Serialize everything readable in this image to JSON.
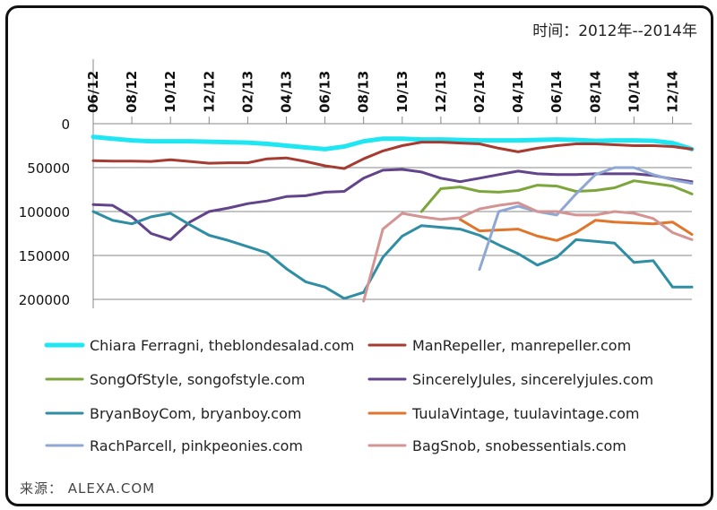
{
  "header": {
    "title": "时间：2012年--2014年"
  },
  "footer": {
    "source": "来源：  ALEXA.COM"
  },
  "chart_data": {
    "type": "line",
    "title": "时间：2012年--2014年",
    "xlabel": "",
    "ylabel": "",
    "x_tick_labels": [
      "06/12",
      "08/12",
      "10/12",
      "12/12",
      "02/13",
      "04/13",
      "06/13",
      "08/13",
      "10/13",
      "12/13",
      "02/14",
      "04/14",
      "06/14",
      "08/14",
      "10/14",
      "12/14"
    ],
    "y_ticks": [
      0,
      50000,
      100000,
      150000,
      200000
    ],
    "y_tick_labels": [
      "0",
      "50000",
      "100000",
      "150000",
      "200000"
    ],
    "ylim": [
      0,
      200000
    ],
    "y_inverted": true,
    "grid": "horizontal",
    "legend_position": "bottom",
    "x_range": [
      0,
      31
    ],
    "series": [
      {
        "name": "Chiara Ferragni, theblondesalad.com",
        "color": "#1ee6f2",
        "x": [
          0,
          1,
          2,
          3,
          4,
          5,
          6,
          7,
          8,
          9,
          10,
          11,
          12,
          13,
          14,
          15,
          16,
          17,
          18,
          19,
          20,
          21,
          22,
          23,
          24,
          25,
          26,
          27,
          28,
          29,
          30,
          31
        ],
        "values": [
          15000,
          17000,
          19000,
          20000,
          20000,
          20000,
          20500,
          21000,
          21500,
          23000,
          25000,
          27000,
          29000,
          26000,
          20000,
          17000,
          17000,
          18000,
          18000,
          18500,
          19000,
          19000,
          19000,
          18500,
          18000,
          18500,
          19500,
          19000,
          19000,
          19500,
          22000,
          29000
        ]
      },
      {
        "name": "ManRepeller, manrepeller.com",
        "color": "#a63b32",
        "x": [
          0,
          1,
          2,
          3,
          4,
          5,
          6,
          7,
          8,
          9,
          10,
          11,
          12,
          13,
          14,
          15,
          16,
          17,
          18,
          19,
          20,
          21,
          22,
          23,
          24,
          25,
          26,
          27,
          28,
          29,
          30,
          31
        ],
        "values": [
          42000,
          42500,
          42500,
          43000,
          41000,
          43000,
          45000,
          44500,
          44500,
          40000,
          39000,
          43000,
          48000,
          51000,
          40000,
          31000,
          25000,
          21000,
          21000,
          22000,
          23000,
          28000,
          32000,
          28000,
          25000,
          23000,
          23000,
          24000,
          25000,
          25000,
          26000,
          29000
        ]
      },
      {
        "name": "SongOfStyle, songofstyle.com",
        "color": "#7ca63b",
        "x": [
          17,
          18,
          19,
          20,
          21,
          22,
          23,
          24,
          25,
          26,
          27,
          28,
          29,
          30,
          31
        ],
        "values": [
          100000,
          74000,
          72000,
          77000,
          78000,
          76000,
          70000,
          71000,
          77000,
          76000,
          73000,
          65000,
          68000,
          71000,
          80000
        ]
      },
      {
        "name": "SincerelyJules, sincerelyjules.com",
        "color": "#62448a",
        "x": [
          0,
          1,
          2,
          3,
          4,
          5,
          6,
          7,
          8,
          9,
          10,
          11,
          12,
          13,
          14,
          15,
          16,
          17,
          18,
          19,
          20,
          21,
          22,
          23,
          24,
          25,
          26,
          27,
          28,
          29,
          30,
          31
        ],
        "values": [
          92000,
          93000,
          106000,
          125000,
          132000,
          112000,
          100000,
          96000,
          91000,
          88000,
          83000,
          82000,
          78000,
          77000,
          62000,
          53000,
          52000,
          55000,
          62000,
          66000,
          62000,
          58000,
          54000,
          57000,
          58000,
          58000,
          57000,
          57000,
          57000,
          59000,
          63000,
          66000
        ]
      },
      {
        "name": "BryanBoyCom, bryanboy.com",
        "color": "#2f8ea3",
        "x": [
          0,
          1,
          2,
          3,
          4,
          5,
          6,
          7,
          8,
          9,
          10,
          11,
          12,
          13,
          14,
          15,
          16,
          17,
          18,
          19,
          20,
          21,
          22,
          23,
          24,
          25,
          26,
          27,
          28,
          29,
          30,
          31
        ],
        "values": [
          100000,
          110000,
          114000,
          106000,
          102000,
          115000,
          127000,
          133000,
          140000,
          147000,
          165000,
          180000,
          186000,
          199000,
          192000,
          152000,
          128000,
          116000,
          118000,
          120000,
          127000,
          138000,
          148000,
          161000,
          152000,
          132000,
          134000,
          136000,
          158000,
          156000,
          186000,
          186000
        ]
      },
      {
        "name": "TuulaVintage, tuulavintage.com",
        "color": "#e0762b",
        "x": [
          19,
          20,
          21,
          22,
          23,
          24,
          25,
          26,
          27,
          28,
          29,
          30,
          31
        ],
        "values": [
          109000,
          122000,
          121000,
          120000,
          128000,
          133000,
          124000,
          110000,
          112000,
          113000,
          114000,
          112000,
          126000
        ]
      },
      {
        "name": "RachParcell, pinkpeonies.com",
        "color": "#8ea7d4",
        "x": [
          20,
          21,
          22,
          23,
          24,
          25,
          26,
          27,
          28,
          29,
          30,
          31
        ],
        "values": [
          166000,
          100000,
          94000,
          100000,
          104000,
          80000,
          58000,
          50000,
          50000,
          58000,
          64000,
          68000
        ]
      },
      {
        "name": "BagSnob, snobessentials.com",
        "color": "#d49494",
        "x": [
          14,
          15,
          16,
          17,
          18,
          19,
          20,
          21,
          22,
          23,
          24,
          25,
          26,
          27,
          28,
          29,
          30,
          31
        ],
        "values": [
          202000,
          120000,
          102000,
          106000,
          109000,
          107000,
          97000,
          93000,
          90000,
          100000,
          100000,
          104000,
          104000,
          100000,
          102000,
          108000,
          124000,
          132000
        ]
      }
    ]
  }
}
